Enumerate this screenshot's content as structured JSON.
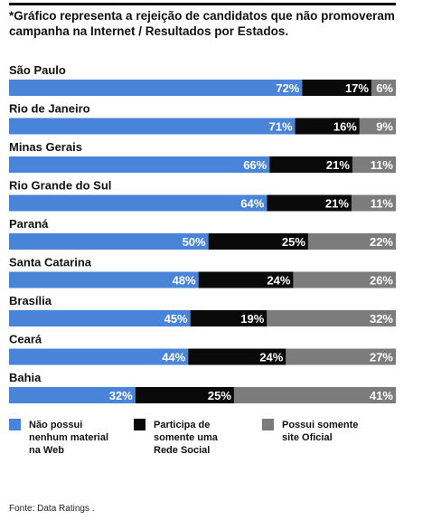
{
  "header": {
    "title": "*Gráfico representa a rejeição de candidatos que não promoveram  campanha na Internet / Resultados por Estados."
  },
  "colors": {
    "blue": "#4a84d8",
    "black": "#0a0a0a",
    "gray": "#7c7c7c"
  },
  "chart_data": {
    "type": "bar",
    "stacked": true,
    "orientation": "horizontal",
    "title": "*Gráfico representa a rejeição de candidatos que não promoveram  campanha na Internet / Resultados por Estados.",
    "xlim": [
      0,
      100
    ],
    "categories": [
      "São Paulo",
      "Rio de Janeiro",
      "Minas Gerais",
      "Rio Grande do Sul",
      "Paraná",
      "Santa Catarina",
      "Brasília",
      "Ceará",
      "Bahia"
    ],
    "series": [
      {
        "name": "Não possui nenhum material na Web",
        "values": [
          72,
          71,
          66,
          64,
          50,
          48,
          45,
          44,
          32
        ],
        "labels": [
          "72%",
          "71%",
          "66%",
          "64%",
          "50%",
          "48%",
          "45%",
          "44%",
          "32%"
        ]
      },
      {
        "name": "Participa de somente uma Rede Social",
        "values": [
          17,
          16,
          21,
          21,
          25,
          24,
          19,
          24,
          25
        ],
        "labels": [
          "17%",
          "16%",
          "21%",
          "21%",
          "25%",
          "24%",
          "19%",
          "24%",
          "25%"
        ]
      },
      {
        "name": "Possui somente site Oficial",
        "values": [
          6,
          9,
          11,
          11,
          22,
          26,
          32,
          27,
          41
        ],
        "labels": [
          "6%",
          "9%",
          "11%",
          "11%",
          "22%",
          "26%",
          "32%",
          "27%",
          "41%"
        ]
      }
    ]
  },
  "legend": [
    {
      "label": "Não possui nenhum material na Web"
    },
    {
      "label": "Participa de somente uma Rede Social"
    },
    {
      "label": "Possui somente site Oficial"
    }
  ],
  "footer": {
    "source": "Fonte: Data Ratings ."
  }
}
